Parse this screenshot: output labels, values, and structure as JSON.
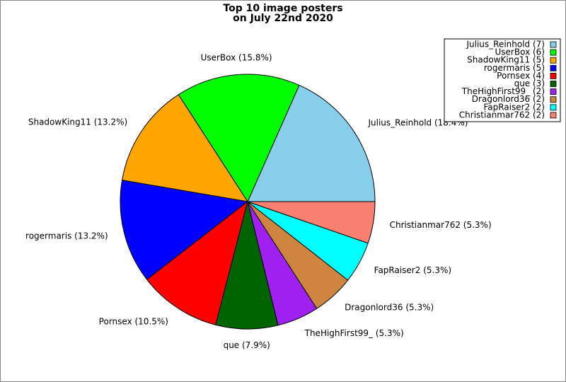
{
  "chart_data": {
    "type": "pie",
    "title": [
      "Top 10 image posters",
      "on July 22nd 2020"
    ],
    "categories": [
      "Julius_Reinhold",
      "UserBox",
      "ShadowKing11",
      "rogermaris",
      "Pornsex",
      "que",
      "TheHighFirst99_",
      "Dragonlord36",
      "FapRaiser2",
      "Christianmar762"
    ],
    "values": [
      18.4,
      15.8,
      13.2,
      13.2,
      10.5,
      7.9,
      5.3,
      5.3,
      5.3,
      5.3
    ],
    "value_labels": [
      "Julius_Reinhold (18.4%)",
      "UserBox (15.8%)",
      "ShadowKing11 (13.2%)",
      "rogermaris (13.2%)",
      "Pornsex (10.5%)",
      "que (7.9%)",
      "TheHighFirst99_ (5.3%)",
      "Dragonlord36 (5.3%)",
      "FapRaiser2 (5.3%)",
      "Christianmar762 (5.3%)"
    ],
    "legend_labels": [
      "Julius_Reinhold (7)",
      "UserBox (6)",
      "ShadowKing11 (5)",
      "rogermaris (5)",
      "Pornsex (4)",
      "que (3)",
      "TheHighFirst99_ (2)",
      "Dragonlord36 (2)",
      "FapRaiser2 (2)",
      "Christianmar762 (2)"
    ],
    "colors": [
      "#87ceeb",
      "#00ff00",
      "#ffa500",
      "#0000ff",
      "#ff0000",
      "#006400",
      "#a020f0",
      "#cd853f",
      "#00ffff",
      "#fa8072"
    ],
    "legend": "upper right"
  }
}
